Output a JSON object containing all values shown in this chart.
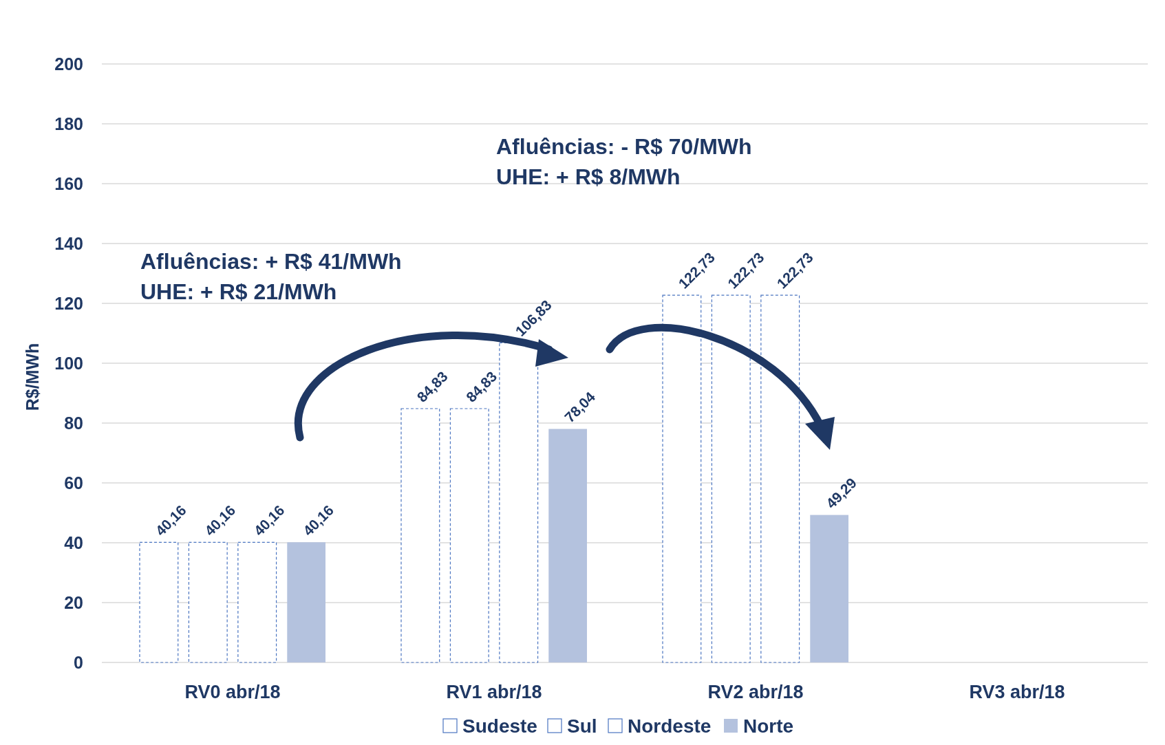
{
  "chart_data": {
    "type": "bar",
    "ylabel": "R$/MWh",
    "categories": [
      "RV0 abr/18",
      "RV1 abr/18",
      "RV2 abr/18",
      "RV3 abr/18"
    ],
    "series": [
      {
        "name": "Sudeste",
        "color": "#ffffff",
        "values": [
          40.16,
          84.83,
          122.73,
          null
        ],
        "value_labels": [
          "40,16",
          "84,83",
          "122,73",
          null
        ]
      },
      {
        "name": "Sul",
        "color": "#ffffff",
        "values": [
          40.16,
          84.83,
          122.73,
          null
        ],
        "value_labels": [
          "40,16",
          "84,83",
          "122,73",
          null
        ]
      },
      {
        "name": "Nordeste",
        "color": "#ffffff",
        "values": [
          40.16,
          106.83,
          122.73,
          null
        ],
        "value_labels": [
          "40,16",
          "106,83",
          "122,73",
          null
        ]
      },
      {
        "name": "Norte",
        "color": "#b4c2de",
        "values": [
          40.16,
          78.04,
          49.29,
          null
        ],
        "value_labels": [
          "40,16",
          "78,04",
          "49,29",
          null
        ]
      }
    ],
    "ylim": [
      0,
      200
    ],
    "yticks": [
      0,
      20,
      40,
      60,
      80,
      100,
      120,
      140,
      160,
      180,
      200
    ],
    "grid": "y",
    "legend": "bottom",
    "annotations": [
      "Afluências: + R$ 41/MWh\nUHE: + R$ 21/MWh",
      "Afluências: - R$ 70/MWh\nUHE: + R$ 8/MWh"
    ]
  }
}
